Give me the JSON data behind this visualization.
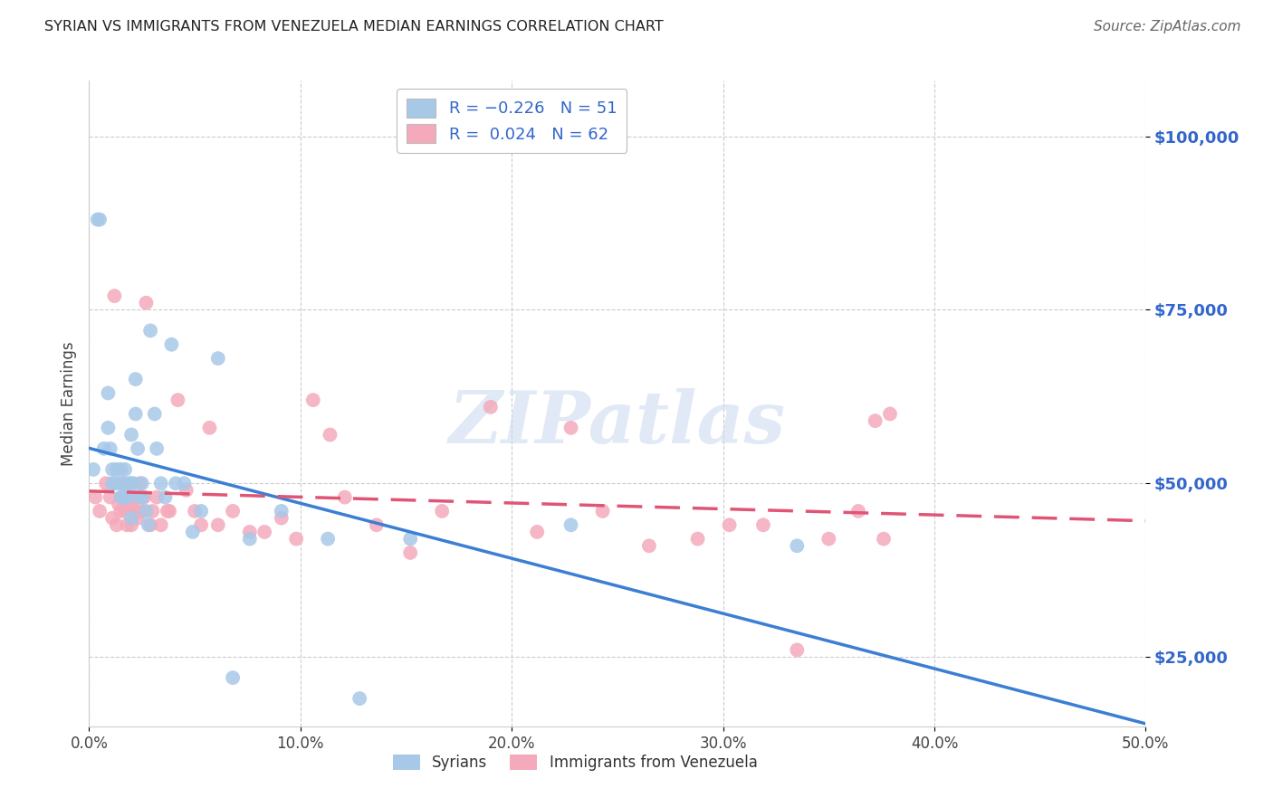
{
  "title": "SYRIAN VS IMMIGRANTS FROM VENEZUELA MEDIAN EARNINGS CORRELATION CHART",
  "source": "Source: ZipAtlas.com",
  "ylabel": "Median Earnings",
  "xlim": [
    0.0,
    0.5
  ],
  "ylim": [
    15000,
    108000
  ],
  "yticks": [
    25000,
    50000,
    75000,
    100000
  ],
  "ytick_labels": [
    "$25,000",
    "$50,000",
    "$75,000",
    "$100,000"
  ],
  "xticks": [
    0.0,
    0.1,
    0.2,
    0.3,
    0.4,
    0.5
  ],
  "xtick_labels": [
    "0.0%",
    "10.0%",
    "20.0%",
    "30.0%",
    "40.0%",
    "50.0%"
  ],
  "syrians_R": -0.226,
  "syrians_N": 51,
  "venezuela_R": 0.024,
  "venezuela_N": 62,
  "syrians_color": "#a8c8e8",
  "venezuela_color": "#f4aabb",
  "syrians_line_color": "#3b7fd4",
  "venezuela_line_color": "#e05575",
  "legend_color": "#3366cc",
  "background_color": "#ffffff",
  "watermark": "ZIPatlas",
  "syrians_x": [
    0.002,
    0.004,
    0.005,
    0.007,
    0.009,
    0.009,
    0.01,
    0.011,
    0.011,
    0.012,
    0.013,
    0.014,
    0.015,
    0.015,
    0.016,
    0.016,
    0.017,
    0.017,
    0.018,
    0.019,
    0.02,
    0.02,
    0.02,
    0.021,
    0.022,
    0.022,
    0.023,
    0.024,
    0.025,
    0.025,
    0.027,
    0.028,
    0.029,
    0.031,
    0.032,
    0.034,
    0.036,
    0.039,
    0.041,
    0.045,
    0.049,
    0.053,
    0.061,
    0.068,
    0.076,
    0.091,
    0.113,
    0.128,
    0.152,
    0.228,
    0.335
  ],
  "syrians_y": [
    52000,
    88000,
    88000,
    55000,
    63000,
    58000,
    55000,
    52000,
    50000,
    50000,
    52000,
    50000,
    52000,
    48000,
    50000,
    48000,
    52000,
    48000,
    48000,
    50000,
    57000,
    50000,
    45000,
    50000,
    65000,
    60000,
    55000,
    48000,
    50000,
    48000,
    46000,
    44000,
    72000,
    60000,
    55000,
    50000,
    48000,
    70000,
    50000,
    50000,
    43000,
    46000,
    68000,
    22000,
    42000,
    46000,
    42000,
    19000,
    42000,
    44000,
    41000
  ],
  "venezuela_x": [
    0.003,
    0.005,
    0.008,
    0.01,
    0.011,
    0.012,
    0.013,
    0.014,
    0.015,
    0.016,
    0.017,
    0.017,
    0.018,
    0.019,
    0.02,
    0.02,
    0.021,
    0.022,
    0.022,
    0.023,
    0.024,
    0.025,
    0.025,
    0.026,
    0.027,
    0.029,
    0.03,
    0.032,
    0.034,
    0.037,
    0.038,
    0.042,
    0.046,
    0.05,
    0.053,
    0.057,
    0.061,
    0.068,
    0.076,
    0.083,
    0.091,
    0.098,
    0.106,
    0.114,
    0.121,
    0.136,
    0.152,
    0.167,
    0.19,
    0.212,
    0.228,
    0.243,
    0.265,
    0.288,
    0.303,
    0.319,
    0.335,
    0.35,
    0.364,
    0.372,
    0.376,
    0.379
  ],
  "venezuela_y": [
    48000,
    46000,
    50000,
    48000,
    45000,
    77000,
    44000,
    47000,
    46000,
    48000,
    46000,
    50000,
    44000,
    48000,
    44000,
    47000,
    46000,
    46000,
    48000,
    45000,
    50000,
    46000,
    46000,
    48000,
    76000,
    44000,
    46000,
    48000,
    44000,
    46000,
    46000,
    62000,
    49000,
    46000,
    44000,
    58000,
    44000,
    46000,
    43000,
    43000,
    45000,
    42000,
    62000,
    57000,
    48000,
    44000,
    40000,
    46000,
    61000,
    43000,
    58000,
    46000,
    41000,
    42000,
    44000,
    44000,
    26000,
    42000,
    46000,
    59000,
    42000,
    60000
  ]
}
